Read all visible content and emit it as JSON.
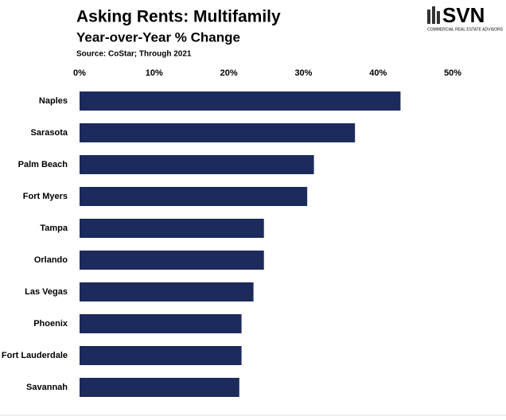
{
  "chart_data": {
    "type": "bar",
    "orientation": "horizontal",
    "title": "Asking Rents: Multifamily",
    "subtitle": "Year-over-Year % Change",
    "source": "Source: CoStar; Through 2021",
    "categories": [
      "Naples",
      "Sarasota",
      "Palm Beach",
      "Fort Myers",
      "Tampa",
      "Orlando",
      "Las Vegas",
      "Phoenix",
      "Fort Lauderdale",
      "Savannah"
    ],
    "values": [
      43.0,
      36.9,
      31.4,
      30.5,
      24.7,
      24.7,
      23.3,
      21.7,
      21.7,
      21.4
    ],
    "color": "#1c2a5c",
    "xlim": [
      0,
      55
    ],
    "xticks": [
      {
        "value": 0,
        "label": "0%"
      },
      {
        "value": 10,
        "label": "10%"
      },
      {
        "value": 20,
        "label": "20%"
      },
      {
        "value": 30,
        "label": "30%"
      },
      {
        "value": 40,
        "label": "40%"
      },
      {
        "value": 50,
        "label": "50%"
      }
    ],
    "grid": false
  },
  "logo": {
    "text": "SVN",
    "tagline": "COMMERCIAL REAL ESTATE ADVISORS"
  }
}
